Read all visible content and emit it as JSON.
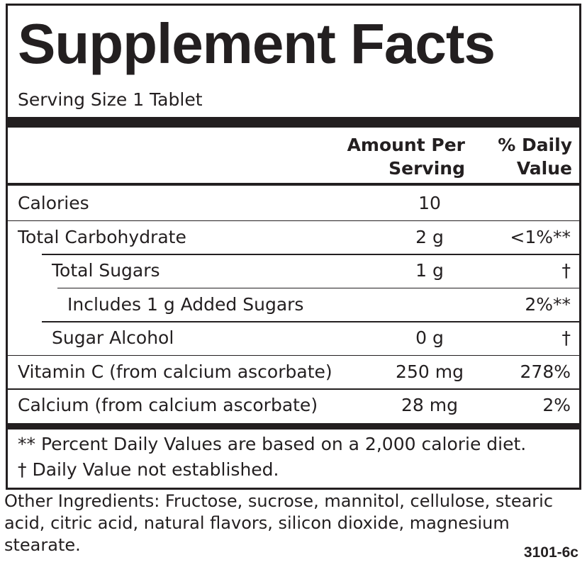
{
  "label": {
    "title": "Supplement Facts",
    "serving_size": "Serving Size 1 Tablet",
    "header": {
      "amount": "Amount Per Serving",
      "daily_value": "% Daily Value"
    },
    "rows": [
      {
        "name": "Calories",
        "amount": "10"
      },
      {
        "name": "Total Carbohydrate",
        "amount": "2 g",
        "daily_value": "<1%**"
      },
      {
        "name": "Total Sugars",
        "amount": "1 g",
        "daily_value": "†"
      },
      {
        "name": "Includes 1 g Added Sugars",
        "daily_value": "2%**"
      },
      {
        "name": "Sugar Alcohol",
        "amount": "0 g",
        "daily_value": "†"
      },
      {
        "name": "Vitamin C (from calcium ascorbate)",
        "amount": "250 mg",
        "daily_value": "278%"
      },
      {
        "name": "Calcium (from calcium ascorbate)",
        "amount": "28 mg",
        "daily_value": "2%"
      }
    ],
    "footnotes": [
      "** Percent Daily Values are based on a 2,000 calorie diet.",
      "† Daily Value not established."
    ]
  },
  "other_ingredients": "Other Ingredients: Fructose, sucrose, mannitol, cellulose, stearic acid, citric acid, natural flavors, silicon dioxide, magnesium stearate.",
  "code": "3101-6c"
}
